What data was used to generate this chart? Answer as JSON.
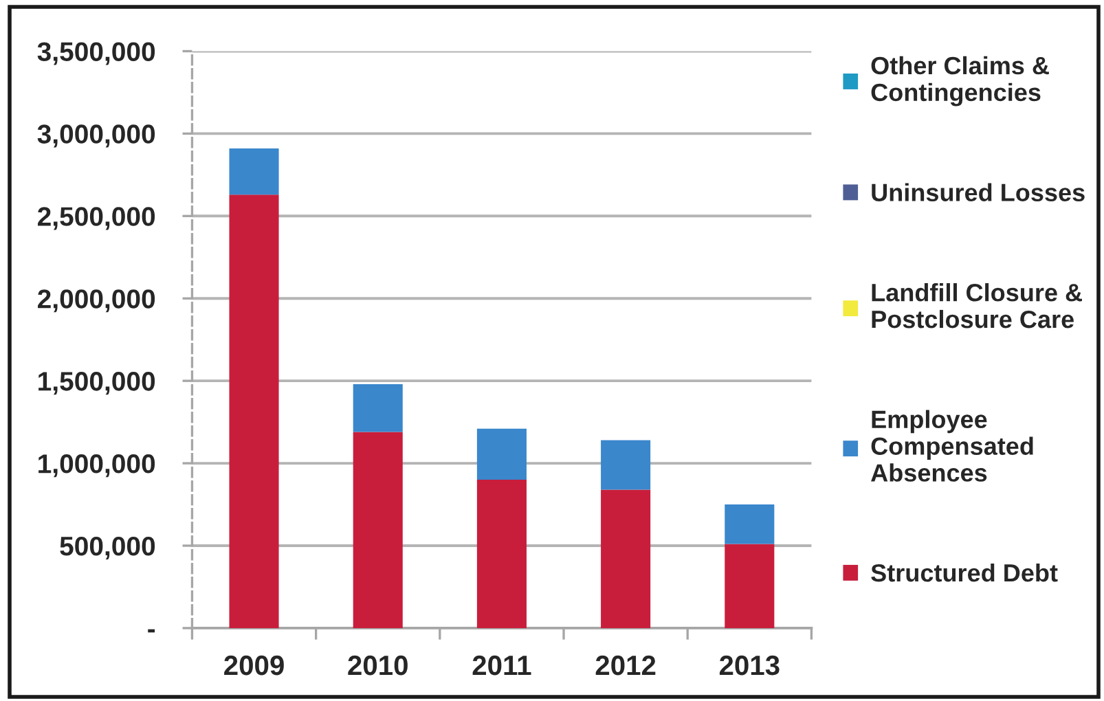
{
  "chart_data": {
    "type": "bar",
    "stacked": true,
    "categories": [
      "2009",
      "2010",
      "2011",
      "2012",
      "2013"
    ],
    "series": [
      {
        "name": "Structured Debt",
        "color": "#c81e3c",
        "values": [
          2630000,
          1190000,
          900000,
          840000,
          510000
        ]
      },
      {
        "name": "Employee Compensated Absences",
        "color": "#3a87cc",
        "values": [
          280000,
          290000,
          310000,
          300000,
          240000
        ]
      },
      {
        "name": "Landfill Closure & Postclosure Care",
        "color": "#f2ea3c",
        "values": [
          null,
          null,
          null,
          null,
          null
        ]
      },
      {
        "name": "Uninsured Losses",
        "color": "#4f5f96",
        "values": [
          null,
          null,
          null,
          null,
          null
        ]
      },
      {
        "name": "Other Claims & Contingencies",
        "color": "#1e9ac4",
        "values": [
          null,
          null,
          null,
          null,
          null
        ]
      }
    ],
    "ylim": [
      0,
      3500000
    ],
    "yticks": [
      {
        "value": 0,
        "label": "-"
      },
      {
        "value": 500000,
        "label": "500,000"
      },
      {
        "value": 1000000,
        "label": "1,000,000"
      },
      {
        "value": 1500000,
        "label": "1,500,000"
      },
      {
        "value": 2000000,
        "label": "2,000,000"
      },
      {
        "value": 2500000,
        "label": "2,500,000"
      },
      {
        "value": 3000000,
        "label": "3,000,000"
      },
      {
        "value": 3500000,
        "label": "3,500,000"
      }
    ],
    "grid": "y",
    "legend": "right"
  }
}
